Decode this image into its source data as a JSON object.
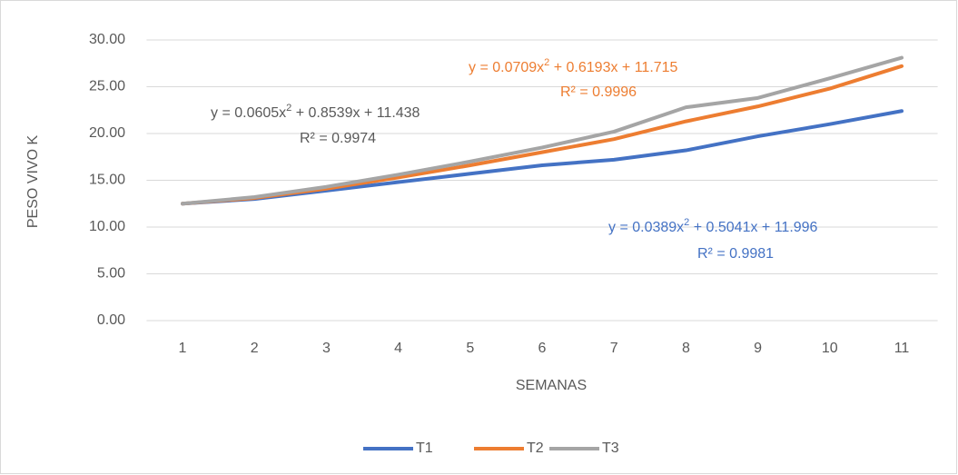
{
  "chart_data": {
    "type": "line",
    "xlabel": "SEMANAS",
    "ylabel": "PESO VIVO K",
    "categories": [
      "1",
      "2",
      "3",
      "4",
      "5",
      "6",
      "7",
      "8",
      "9",
      "10",
      "11"
    ],
    "series": [
      {
        "name": "T1",
        "color": "#4472c4",
        "values": [
          12.5,
          13.0,
          13.9,
          14.8,
          15.7,
          16.6,
          17.2,
          18.2,
          19.7,
          21.0,
          22.4
        ]
      },
      {
        "name": "T2",
        "color": "#ed7d31",
        "values": [
          12.5,
          13.1,
          14.1,
          15.3,
          16.6,
          18.0,
          19.4,
          21.3,
          22.9,
          24.8,
          27.2
        ]
      },
      {
        "name": "T3",
        "color": "#a5a5a5",
        "values": [
          12.5,
          13.2,
          14.3,
          15.6,
          17.0,
          18.5,
          20.2,
          22.8,
          23.8,
          25.9,
          28.1
        ]
      }
    ],
    "ylim": [
      0,
      30
    ],
    "yticks": [
      {
        "value": 0,
        "label": "0.00"
      },
      {
        "value": 5,
        "label": "5.00"
      },
      {
        "value": 10,
        "label": "10.00"
      },
      {
        "value": 15,
        "label": "15.00"
      },
      {
        "value": 20,
        "label": "20.00"
      },
      {
        "value": 25,
        "label": "25.00"
      },
      {
        "value": 30,
        "label": "30.00"
      }
    ],
    "grid": true,
    "legend": "bottom",
    "annotations": [
      {
        "equation": [
          "y = 0.0389x",
          "2",
          " + 0.5041x + 11.996"
        ],
        "r2": "R² = 0.9981",
        "color": "#4472c4"
      },
      {
        "equation": [
          "y = 0.0709x",
          "2",
          " + 0.6193x + 11.715"
        ],
        "r2": "R² = 0.9996",
        "color": "#ed7d31"
      },
      {
        "equation": [
          "y = 0.0605x",
          "2",
          " + 0.8539x + 11.438"
        ],
        "r2": "R² = 0.9974",
        "color": "#595959"
      }
    ]
  }
}
